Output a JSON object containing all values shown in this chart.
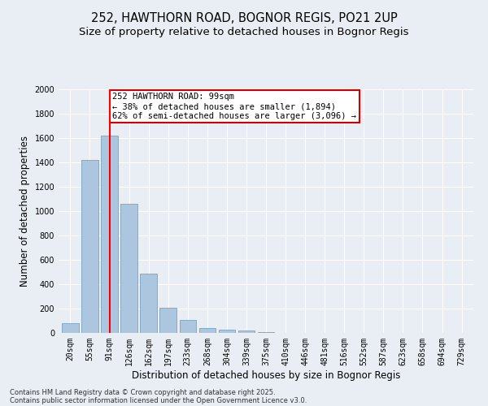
{
  "title1": "252, HAWTHORN ROAD, BOGNOR REGIS, PO21 2UP",
  "title2": "Size of property relative to detached houses in Bognor Regis",
  "xlabel": "Distribution of detached houses by size in Bognor Regis",
  "ylabel": "Number of detached properties",
  "categories": [
    "20sqm",
    "55sqm",
    "91sqm",
    "126sqm",
    "162sqm",
    "197sqm",
    "233sqm",
    "268sqm",
    "304sqm",
    "339sqm",
    "375sqm",
    "410sqm",
    "446sqm",
    "481sqm",
    "516sqm",
    "552sqm",
    "587sqm",
    "623sqm",
    "658sqm",
    "694sqm",
    "729sqm"
  ],
  "values": [
    80,
    1420,
    1620,
    1060,
    490,
    205,
    105,
    40,
    30,
    20,
    10,
    0,
    0,
    0,
    0,
    0,
    0,
    0,
    0,
    0,
    0
  ],
  "bar_color": "#adc6e0",
  "bar_edgecolor": "#6699bb",
  "ylim": [
    0,
    2000
  ],
  "yticks": [
    0,
    200,
    400,
    600,
    800,
    1000,
    1200,
    1400,
    1600,
    1800,
    2000
  ],
  "property_line_x": 2,
  "annotation_text": "252 HAWTHORN ROAD: 99sqm\n← 38% of detached houses are smaller (1,894)\n62% of semi-detached houses are larger (3,096) →",
  "annotation_box_color": "#ffffff",
  "annotation_border_color": "#cc0000",
  "footer1": "Contains HM Land Registry data © Crown copyright and database right 2025.",
  "footer2": "Contains public sector information licensed under the Open Government Licence v3.0.",
  "bg_color": "#e8eef4",
  "plot_bg_color": "#e8eef4",
  "grid_color": "#ffffff",
  "title_fontsize": 10.5,
  "subtitle_fontsize": 9.5,
  "tick_fontsize": 7,
  "ylabel_fontsize": 8.5,
  "xlabel_fontsize": 8.5,
  "footer_fontsize": 6,
  "annotation_fontsize": 7.5
}
